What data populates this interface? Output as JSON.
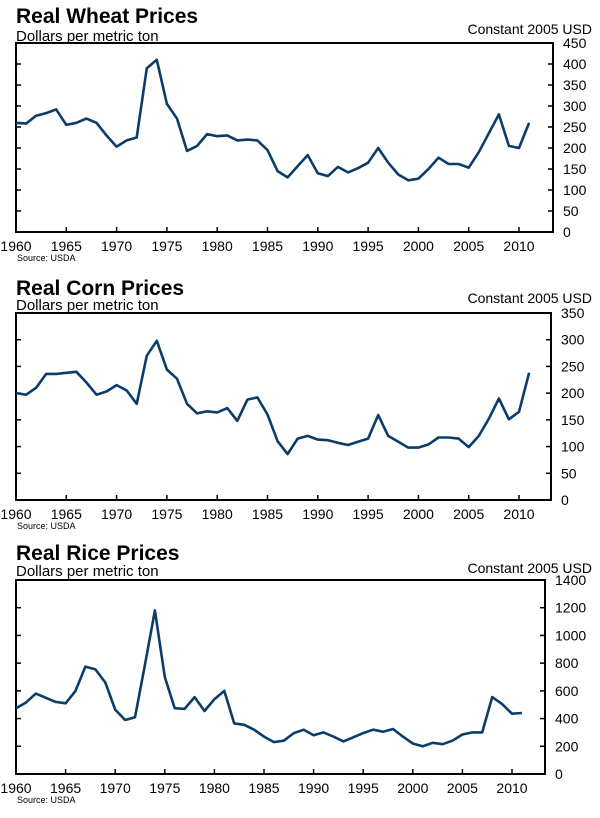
{
  "line_color": "#0b3d6b",
  "chart_data": [
    {
      "type": "line",
      "title": "Real Wheat Prices",
      "subtitle": "Dollars per metric ton",
      "units_label": "Constant 2005 USD",
      "source": "Source: USDA",
      "xlabel": "",
      "ylabel": "Dollars per metric ton (Constant 2005 USD)",
      "xlim": [
        1960,
        2011
      ],
      "ylim": [
        0,
        450
      ],
      "x_ticks": [
        1960,
        1965,
        1970,
        1975,
        1980,
        1985,
        1990,
        1995,
        2000,
        2005,
        2010
      ],
      "y_ticks": [
        0,
        50,
        100,
        150,
        200,
        250,
        300,
        350,
        400,
        450
      ],
      "y_axis_side": "right",
      "grid": false,
      "series": [
        {
          "name": "Real Wheat Prices",
          "x": [
            1960,
            1961,
            1962,
            1963,
            1964,
            1965,
            1966,
            1967,
            1968,
            1969,
            1970,
            1971,
            1972,
            1973,
            1974,
            1975,
            1976,
            1977,
            1978,
            1979,
            1980,
            1981,
            1982,
            1983,
            1984,
            1985,
            1986,
            1987,
            1988,
            1989,
            1990,
            1991,
            1992,
            1993,
            1994,
            1995,
            1996,
            1997,
            1998,
            1999,
            2000,
            2001,
            2002,
            2003,
            2004,
            2005,
            2006,
            2007,
            2008,
            2009,
            2010,
            2011
          ],
          "values": [
            260,
            258,
            277,
            283,
            292,
            255,
            260,
            270,
            260,
            230,
            203,
            218,
            225,
            390,
            410,
            305,
            270,
            193,
            205,
            233,
            228,
            230,
            218,
            220,
            218,
            195,
            145,
            130,
            157,
            183,
            140,
            133,
            155,
            142,
            152,
            165,
            200,
            165,
            137,
            123,
            127,
            150,
            177,
            162,
            162,
            153,
            190,
            235,
            280,
            205,
            200,
            260
          ]
        }
      ]
    },
    {
      "type": "line",
      "title": "Real Corn Prices",
      "subtitle": "Dollars per metric ton",
      "units_label": "Constant 2005 USD",
      "source": "Source: USDA",
      "xlabel": "",
      "ylabel": "Dollars per metric ton (Constant 2005 USD)",
      "xlim": [
        1960,
        2011
      ],
      "ylim": [
        0,
        350
      ],
      "x_ticks": [
        1960,
        1965,
        1970,
        1975,
        1980,
        1985,
        1990,
        1995,
        2000,
        2005,
        2010
      ],
      "y_ticks": [
        0,
        50,
        100,
        150,
        200,
        250,
        300,
        350
      ],
      "y_axis_side": "right",
      "grid": false,
      "series": [
        {
          "name": "Real Corn Prices",
          "x": [
            1960,
            1961,
            1962,
            1963,
            1964,
            1965,
            1966,
            1967,
            1968,
            1969,
            1970,
            1971,
            1972,
            1973,
            1974,
            1975,
            1976,
            1977,
            1978,
            1979,
            1980,
            1981,
            1982,
            1983,
            1984,
            1985,
            1986,
            1987,
            1988,
            1989,
            1990,
            1991,
            1992,
            1993,
            1994,
            1995,
            1996,
            1997,
            1998,
            1999,
            2000,
            2001,
            2002,
            2003,
            2004,
            2005,
            2006,
            2007,
            2008,
            2009,
            2010,
            2011
          ],
          "values": [
            200,
            197,
            210,
            236,
            236,
            238,
            240,
            220,
            197,
            203,
            215,
            205,
            180,
            270,
            298,
            244,
            227,
            180,
            162,
            166,
            164,
            172,
            148,
            188,
            192,
            160,
            110,
            86,
            115,
            120,
            113,
            112,
            107,
            103,
            109,
            115,
            159,
            120,
            109,
            98,
            98,
            104,
            117,
            117,
            115,
            99,
            120,
            152,
            190,
            151,
            165,
            238
          ]
        }
      ]
    },
    {
      "type": "line",
      "title": "Real Rice Prices",
      "subtitle": "Dollars per metric ton",
      "units_label": "Constant 2005 USD",
      "source": "Source: USDA",
      "xlabel": "",
      "ylabel": "Dollars per metric ton (Constant 2005 USD)",
      "xlim": [
        1960,
        2011
      ],
      "ylim": [
        0,
        1400
      ],
      "x_ticks": [
        1960,
        1965,
        1970,
        1975,
        1980,
        1985,
        1990,
        1995,
        2000,
        2005,
        2010
      ],
      "y_ticks": [
        0,
        200,
        400,
        600,
        800,
        1000,
        1200,
        1400
      ],
      "y_axis_side": "right",
      "grid": false,
      "series": [
        {
          "name": "Real Rice Prices",
          "x": [
            1960,
            1961,
            1962,
            1963,
            1964,
            1965,
            1966,
            1967,
            1968,
            1969,
            1970,
            1971,
            1972,
            1973,
            1974,
            1975,
            1976,
            1977,
            1978,
            1979,
            1980,
            1981,
            1982,
            1983,
            1984,
            1985,
            1986,
            1987,
            1988,
            1989,
            1990,
            1991,
            1992,
            1993,
            1994,
            1995,
            1996,
            1997,
            1998,
            1999,
            2000,
            2001,
            2002,
            2003,
            2004,
            2005,
            2006,
            2007,
            2008,
            2009,
            2010,
            2011
          ],
          "values": [
            475,
            515,
            580,
            550,
            520,
            510,
            600,
            775,
            755,
            660,
            465,
            390,
            410,
            790,
            1180,
            700,
            475,
            470,
            555,
            455,
            540,
            600,
            365,
            355,
            320,
            270,
            230,
            240,
            295,
            320,
            280,
            300,
            270,
            235,
            265,
            295,
            320,
            305,
            325,
            270,
            220,
            200,
            225,
            215,
            240,
            285,
            300,
            300,
            555,
            505,
            435,
            440
          ]
        }
      ]
    }
  ]
}
